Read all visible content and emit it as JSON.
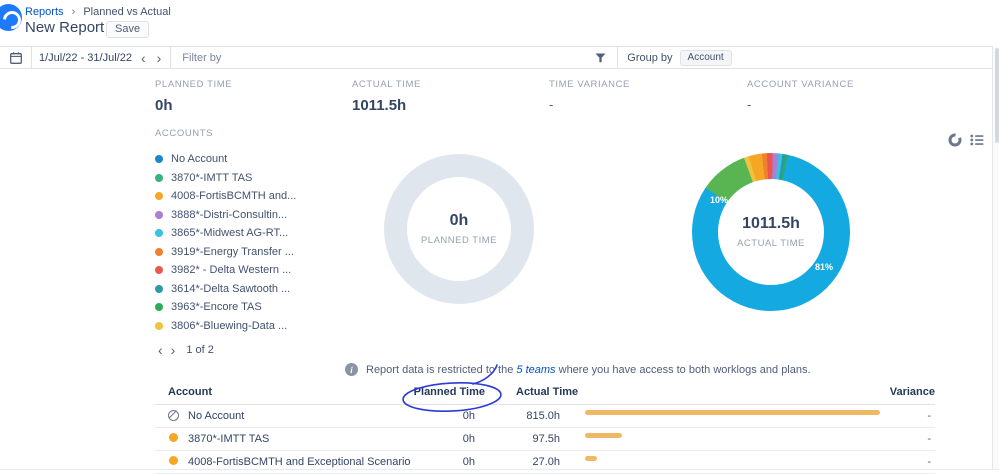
{
  "colors": {
    "accent_blue": "#0052CC",
    "logo_blue": "#1D7AFC",
    "donut_blue": "#14A9E0",
    "donut_green": "#58B552",
    "donut_empty": "#DFE6ED",
    "bar_orange": "#EFB963",
    "pen_blue": "#2B3BD6"
  },
  "icons": {
    "chevron_left": "‹",
    "chevron_right": "›",
    "info": "i"
  },
  "breadcrumb": {
    "reports": "Reports",
    "separator": "›",
    "current": "Planned vs Actual"
  },
  "header": {
    "title": "New Report",
    "save_label": "Save"
  },
  "toolbar": {
    "date_range": "1/Jul/22 - 31/Jul/22",
    "filter_label": "Filter by",
    "group_by_label": "Group by",
    "group_by_value": "Account"
  },
  "summary": [
    {
      "label": "PLANNED TIME",
      "value": "0h"
    },
    {
      "label": "ACTUAL TIME",
      "value": "1011.5h"
    },
    {
      "label": "TIME VARIANCE",
      "value": "-"
    },
    {
      "label": "ACCOUNT VARIANCE",
      "value": "-"
    }
  ],
  "accounts": {
    "title": "ACCOUNTS",
    "items": [
      {
        "label": "No Account",
        "color": "#1C87C9"
      },
      {
        "label": "3870*-IMTT TAS",
        "color": "#36B37E"
      },
      {
        "label": "4008-FortisBCMTH and...",
        "color": "#F5A623"
      },
      {
        "label": "3888*-Distri-Consultin...",
        "color": "#AE7DD6"
      },
      {
        "label": "3865*-Midwest AG-RT...",
        "color": "#38C1E0"
      },
      {
        "label": "3919*-Energy Transfer ...",
        "color": "#F0802F"
      },
      {
        "label": "3982* - Delta Western ...",
        "color": "#E8584F"
      },
      {
        "label": "3614*-Delta Sawtooth ...",
        "color": "#2A9BA6"
      },
      {
        "label": "3963*-Encore TAS",
        "color": "#2BAC5C"
      },
      {
        "label": "3806*-Bluewing-Data ...",
        "color": "#EFC33F"
      }
    ],
    "pagination": "1 of 2"
  },
  "chart_data": [
    {
      "type": "donut",
      "name": "planned-time-donut",
      "center_value": "0h",
      "center_label": "PLANNED TIME",
      "start_angle": 0,
      "segments": [
        {
          "label": "empty",
          "pct": 100,
          "color": "#DFE6ED"
        }
      ]
    },
    {
      "type": "donut",
      "name": "actual-time-donut",
      "center_value": "1011.5h",
      "center_label": "ACTUAL TIME",
      "start_angle": 340,
      "total_hours": 1011.5,
      "pct_labels": [
        "10%",
        "81%"
      ],
      "segments": [
        {
          "label": "3806*-Bluewing-Data",
          "pct": 1.0,
          "color": "#EFC33F"
        },
        {
          "label": "4008-FortisBCMTH",
          "pct": 2.7,
          "color": "#F5A623"
        },
        {
          "label": "3919*-Energy Transfer",
          "pct": 1.0,
          "color": "#F0802F"
        },
        {
          "label": "3982*-Delta Western",
          "pct": 1.2,
          "color": "#E8584F"
        },
        {
          "label": "3888*-Distri-Consulting",
          "pct": 1.1,
          "color": "#AE7DD6"
        },
        {
          "label": "3865*-Midwest AG-RT",
          "pct": 0.9,
          "color": "#38C1E0"
        },
        {
          "label": "3614*-Delta Sawtooth",
          "pct": 0.7,
          "color": "#2A9BA6"
        },
        {
          "label": "3963*-Encore TAS",
          "pct": 0.4,
          "color": "#2BAC5C"
        },
        {
          "label": "No Account",
          "pct": 81,
          "color": "#14A9E0"
        },
        {
          "label": "3870*-IMTT TAS",
          "pct": 10,
          "color": "#58B552"
        }
      ]
    }
  ],
  "info": {
    "prefix": "Report data is restricted to the ",
    "link": "5 teams",
    "suffix": " where you have access to both worklogs and plans."
  },
  "table": {
    "headers": {
      "account": "Account",
      "planned": "Planned Time",
      "actual": "Actual Time",
      "variance": "Variance"
    },
    "rows": [
      {
        "account": "No Account",
        "icon": "no-account",
        "planned": "0h",
        "actual": "815.0h",
        "bar_pct": 100,
        "variance": "-"
      },
      {
        "account": "3870*-IMTT TAS",
        "icon": "dot",
        "dot_color": "#F5A623",
        "planned": "0h",
        "actual": "97.5h",
        "bar_pct": 12.5,
        "variance": "-"
      },
      {
        "account": "4008-FortisBCMTH and Exceptional Scenario",
        "icon": "dot",
        "dot_color": "#F5A623",
        "planned": "0h",
        "actual": "27.0h",
        "bar_pct": 4,
        "variance": "-"
      }
    ]
  }
}
